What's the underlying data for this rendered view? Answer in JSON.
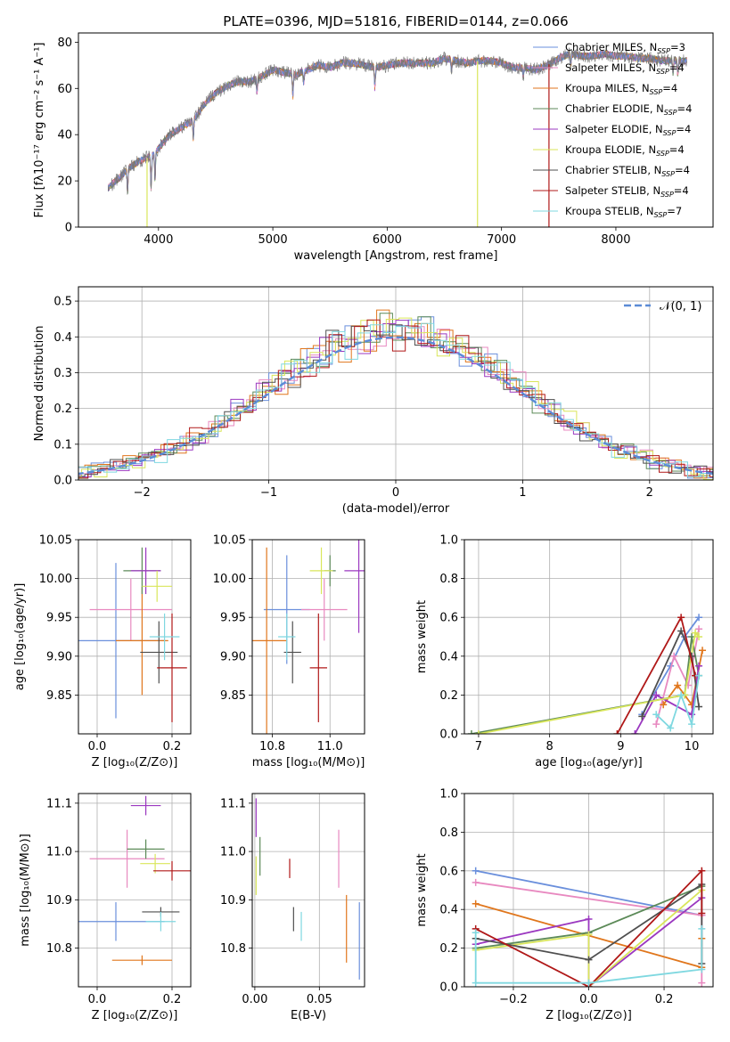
{
  "figure": {
    "title": "PLATE=0396, MJD=51816, FIBERID=0144, z=0.066"
  },
  "colors": {
    "Chabrier MILES": "#6a8fdc",
    "Salpeter MILES": "#e889c0",
    "Kroupa MILES": "#e0761c",
    "Chabrier ELODIE": "#5c8a58",
    "Salpeter ELODIE": "#9b38c0",
    "Kroupa ELODIE": "#d9e65a",
    "Chabrier STELIB": "#4f4f4f",
    "Salpeter STELIB": "#b01818",
    "Kroupa STELIB": "#7fd8e0"
  },
  "chart_data": [
    {
      "id": "spectrum",
      "type": "line",
      "xlabel": "wavelength [Angstrom, rest frame]",
      "ylabel": "Flux [fλ10⁻¹⁷ erg cm⁻² s⁻¹ A⁻¹]",
      "xlim": [
        3300,
        8850
      ],
      "ylim": [
        0,
        84
      ],
      "xticks": [
        "4000",
        "5000",
        "6000",
        "7000",
        "8000"
      ],
      "yticks": [
        "0",
        "20",
        "40",
        "60",
        "80"
      ],
      "legend_position": "top-right",
      "legend": [
        "Chabrier MILES, N_SSP=3",
        "Salpeter MILES, N_SSP=4",
        "Kroupa MILES, N_SSP=4",
        "Chabrier ELODIE, N_SSP=4",
        "Salpeter ELODIE, N_SSP=4",
        "Kroupa ELODIE, N_SSP=4",
        "Chabrier STELIB, N_SSP=4",
        "Salpeter STELIB, N_SSP=4",
        "Kroupa STELIB, N_SSP=7"
      ],
      "data_continuum": {
        "x": [
          3560,
          3650,
          3750,
          3850,
          3950,
          4000,
          4100,
          4200,
          4300,
          4400,
          4500,
          4600,
          4700,
          4800,
          4900,
          5000,
          5100,
          5200,
          5300,
          5400,
          5500,
          5600,
          5700,
          5800,
          5900,
          6000,
          6100,
          6200,
          6300,
          6400,
          6500,
          6600,
          6700,
          6800,
          6900,
          7000,
          7100,
          7200,
          7300,
          7400,
          7500,
          7600,
          7700,
          7800,
          7900,
          8000,
          8100,
          8200,
          8300,
          8400,
          8500,
          8600
        ],
        "y": [
          17,
          21,
          26,
          29,
          31,
          34,
          40,
          43,
          46,
          53,
          58,
          61,
          63,
          63,
          65,
          68,
          67,
          66,
          68,
          70,
          69,
          71,
          71,
          70,
          69,
          70,
          71,
          71,
          71,
          71,
          73,
          72,
          71,
          72,
          72,
          71,
          69,
          69,
          68,
          70,
          73,
          75,
          74,
          74,
          75,
          74,
          74,
          73,
          73,
          72,
          72,
          72
        ]
      },
      "absorption_dips": [
        {
          "x": 3730,
          "depth": 10
        },
        {
          "x": 3935,
          "depth": 14
        },
        {
          "x": 3970,
          "depth": 12
        },
        {
          "x": 4305,
          "depth": 8
        },
        {
          "x": 4862,
          "depth": 6
        },
        {
          "x": 5175,
          "depth": 10
        },
        {
          "x": 5270,
          "depth": 5
        },
        {
          "x": 5892,
          "depth": 9
        },
        {
          "x": 6563,
          "depth": 5
        },
        {
          "x": 7190,
          "depth": 4
        },
        {
          "x": 7605,
          "depth": 5
        },
        {
          "x": 8500,
          "depth": 5
        },
        {
          "x": 8542,
          "depth": 6
        },
        {
          "x": 8662,
          "depth": 8
        }
      ],
      "model_drops": [
        {
          "series": "Kroupa ELODIE",
          "x": 3900
        },
        {
          "series": "Kroupa ELODIE",
          "x": 6790
        },
        {
          "series": "Salpeter STELIB",
          "x": 7415
        }
      ]
    },
    {
      "id": "residuals",
      "type": "histogram",
      "xlabel": "(data-model)/error",
      "ylabel": "Normed distribution",
      "xlim": [
        -2.5,
        2.5
      ],
      "ylim": [
        0,
        0.54
      ],
      "xticks": [
        "−2",
        "−1",
        "0",
        "1",
        "2"
      ],
      "yticks": [
        "0.0",
        "0.1",
        "0.2",
        "0.3",
        "0.4",
        "0.5"
      ],
      "grid": true,
      "legend_position": "top-right",
      "legend": [
        "𝒩(0, 1)"
      ],
      "bin_width": 0.1
    },
    {
      "id": "age_vs_Z",
      "type": "errorbar",
      "xlabel": "Z [log₁₀(Z/Z⊙)]",
      "ylabel": "age  [log₁₀(age/yr)]",
      "xlim": [
        -0.05,
        0.25
      ],
      "ylim": [
        9.8,
        10.05
      ],
      "xticks": [
        "0.0",
        "0.2"
      ],
      "yticks": [
        "9.85",
        "9.90",
        "9.95",
        "10.00",
        "10.05"
      ],
      "grid": true,
      "points": [
        {
          "series": "Chabrier MILES",
          "x": 0.05,
          "xerr": 0.13,
          "y": 9.92,
          "yerr": 0.1
        },
        {
          "series": "Salpeter MILES",
          "x": 0.09,
          "xerr": 0.11,
          "y": 9.96,
          "yerr": 0.04
        },
        {
          "series": "Kroupa MILES",
          "x": 0.12,
          "xerr": 0.07,
          "y": 9.92,
          "yerr": 0.07
        },
        {
          "series": "Chabrier ELODIE",
          "x": 0.12,
          "xerr": 0.05,
          "y": 10.01,
          "yerr": 0.03
        },
        {
          "series": "Salpeter ELODIE",
          "x": 0.13,
          "xerr": 0.04,
          "y": 10.01,
          "yerr": 0.03
        },
        {
          "series": "Kroupa ELODIE",
          "x": 0.16,
          "xerr": 0.04,
          "y": 9.99,
          "yerr": 0.02
        },
        {
          "series": "Chabrier STELIB",
          "x": 0.165,
          "xerr": 0.05,
          "y": 9.905,
          "yerr": 0.04
        },
        {
          "series": "Salpeter STELIB",
          "x": 0.2,
          "xerr": 0.04,
          "y": 9.885,
          "yerr": 0.07
        },
        {
          "series": "Kroupa STELIB",
          "x": 0.18,
          "xerr": 0.04,
          "y": 9.925,
          "yerr": 0.03
        }
      ]
    },
    {
      "id": "age_vs_mass",
      "type": "errorbar",
      "xlabel": "mass [log₁₀(M/M⊙)]",
      "ylabel": "",
      "xlim": [
        10.73,
        11.12
      ],
      "ylim": [
        9.8,
        10.05
      ],
      "xticks": [
        "10.8",
        "11.0"
      ],
      "yticks": [
        "9.85",
        "9.90",
        "9.95",
        "10.00",
        "10.05"
      ],
      "grid": true,
      "points": [
        {
          "series": "Chabrier MILES",
          "x": 10.85,
          "xerr": 0.08,
          "y": 9.96,
          "yerr": 0.07
        },
        {
          "series": "Salpeter MILES",
          "x": 10.98,
          "xerr": 0.08,
          "y": 9.96,
          "yerr": 0.04
        },
        {
          "series": "Kroupa MILES",
          "x": 10.78,
          "xerr": 0.07,
          "y": 9.92,
          "yerr": 0.12
        },
        {
          "series": "Chabrier ELODIE",
          "x": 11.0,
          "xerr": 0.02,
          "y": 10.01,
          "yerr": 0.02
        },
        {
          "series": "Salpeter ELODIE",
          "x": 11.1,
          "xerr": 0.05,
          "y": 10.01,
          "yerr": 0.08
        },
        {
          "series": "Kroupa ELODIE",
          "x": 10.97,
          "xerr": 0.04,
          "y": 10.01,
          "yerr": 0.03
        },
        {
          "series": "Chabrier STELIB",
          "x": 10.87,
          "xerr": 0.03,
          "y": 9.905,
          "yerr": 0.04
        },
        {
          "series": "Salpeter STELIB",
          "x": 10.96,
          "xerr": 0.03,
          "y": 9.885,
          "yerr": 0.07
        },
        {
          "series": "Kroupa STELIB",
          "x": 10.85,
          "xerr": 0.03,
          "y": 9.925,
          "yerr": 0.03
        }
      ]
    },
    {
      "id": "weights_vs_age",
      "type": "line",
      "xlabel": "age  [log₁₀(age/yr)]",
      "ylabel": "mass weight",
      "xlim": [
        6.8,
        10.3
      ],
      "ylim": [
        0,
        1
      ],
      "xticks": [
        "7",
        "8",
        "9",
        "10"
      ],
      "yticks": [
        "0.0",
        "0.2",
        "0.4",
        "0.6",
        "0.8",
        "1.0"
      ],
      "grid": true,
      "series": [
        {
          "name": "Chabrier MILES",
          "x": [
            9.3,
            9.7,
            9.9,
            10.1
          ],
          "y": [
            0.1,
            0.35,
            0.5,
            0.6
          ]
        },
        {
          "name": "Salpeter MILES",
          "x": [
            9.5,
            9.75,
            9.95,
            10.1
          ],
          "y": [
            0.05,
            0.4,
            0.25,
            0.54
          ]
        },
        {
          "name": "Kroupa MILES",
          "x": [
            9.6,
            9.8,
            10.0,
            10.15
          ],
          "y": [
            0.15,
            0.25,
            0.15,
            0.43
          ]
        },
        {
          "name": "Chabrier ELODIE",
          "x": [
            6.9,
            9.9,
            10.0,
            10.1
          ],
          "y": [
            0.0,
            0.2,
            0.5,
            0.3
          ]
        },
        {
          "name": "Salpeter ELODIE",
          "x": [
            9.2,
            9.5,
            10.0,
            10.1
          ],
          "y": [
            0.0,
            0.2,
            0.1,
            0.35
          ]
        },
        {
          "name": "Kroupa ELODIE",
          "x": [
            7.0,
            9.9,
            10.05,
            10.1
          ],
          "y": [
            0.0,
            0.2,
            0.52,
            0.5
          ]
        },
        {
          "name": "Chabrier STELIB",
          "x": [
            9.3,
            9.85,
            10.0,
            10.1
          ],
          "y": [
            0.09,
            0.53,
            0.4,
            0.14
          ]
        },
        {
          "name": "Salpeter STELIB",
          "x": [
            8.95,
            9.85,
            10.05
          ],
          "y": [
            0.0,
            0.6,
            0.3
          ]
        },
        {
          "name": "Kroupa STELIB",
          "x": [
            9.5,
            9.7,
            9.85,
            10.0,
            10.1
          ],
          "y": [
            0.1,
            0.03,
            0.2,
            0.05,
            0.3
          ]
        }
      ]
    },
    {
      "id": "mass_vs_Z",
      "type": "errorbar",
      "xlabel": "Z [log₁₀(Z/Z⊙)]",
      "ylabel": "mass [log₁₀(M/M⊙)]",
      "xlim": [
        -0.05,
        0.25
      ],
      "ylim": [
        10.72,
        11.12
      ],
      "xticks": [
        "0.0",
        "0.2"
      ],
      "yticks": [
        "10.8",
        "10.9",
        "11.0",
        "11.1"
      ],
      "grid": true,
      "points": [
        {
          "series": "Chabrier MILES",
          "x": 0.05,
          "xerr": 0.13,
          "y": 10.855,
          "yerr": 0.04
        },
        {
          "series": "Salpeter MILES",
          "x": 0.08,
          "xerr": 0.1,
          "y": 10.985,
          "yerr": 0.06
        },
        {
          "series": "Kroupa MILES",
          "x": 0.12,
          "xerr": 0.08,
          "y": 10.775,
          "yerr": 0.01
        },
        {
          "series": "Chabrier ELODIE",
          "x": 0.13,
          "xerr": 0.05,
          "y": 11.005,
          "yerr": 0.02
        },
        {
          "series": "Salpeter ELODIE",
          "x": 0.13,
          "xerr": 0.04,
          "y": 11.095,
          "yerr": 0.02
        },
        {
          "series": "Kroupa ELODIE",
          "x": 0.155,
          "xerr": 0.04,
          "y": 10.975,
          "yerr": 0.02
        },
        {
          "series": "Chabrier STELIB",
          "x": 0.17,
          "xerr": 0.05,
          "y": 10.875,
          "yerr": 0.01
        },
        {
          "series": "Salpeter STELIB",
          "x": 0.2,
          "xerr": 0.05,
          "y": 10.96,
          "yerr": 0.02
        },
        {
          "series": "Kroupa STELIB",
          "x": 0.17,
          "xerr": 0.04,
          "y": 10.855,
          "yerr": 0.02
        }
      ]
    },
    {
      "id": "mass_vs_EBV",
      "type": "errorbar",
      "xlabel": "E(B-V)",
      "ylabel": "",
      "xlim": [
        -0.002,
        0.085
      ],
      "ylim": [
        10.72,
        11.12
      ],
      "xticks": [
        "0.00",
        "0.05"
      ],
      "yticks": [
        "10.8",
        "10.9",
        "11.0",
        "11.1"
      ],
      "grid": true,
      "points": [
        {
          "series": "Chabrier MILES",
          "x": 0.081,
          "y": 10.815,
          "yerr": 0.08
        },
        {
          "series": "Salpeter MILES",
          "x": 0.065,
          "y": 10.985,
          "yerr": 0.06
        },
        {
          "series": "Kroupa MILES",
          "x": 0.071,
          "y": 10.84,
          "yerr": 0.07
        },
        {
          "series": "Chabrier ELODIE",
          "x": 0.004,
          "y": 10.99,
          "yerr": 0.04
        },
        {
          "series": "Salpeter ELODIE",
          "x": 0.001,
          "y": 11.07,
          "yerr": 0.04
        },
        {
          "series": "Kroupa ELODIE",
          "x": 0.001,
          "y": 10.95,
          "yerr": 0.04
        },
        {
          "series": "Chabrier STELIB",
          "x": 0.03,
          "y": 10.86,
          "yerr": 0.025
        },
        {
          "series": "Salpeter STELIB",
          "x": 0.027,
          "y": 10.965,
          "yerr": 0.02
        },
        {
          "series": "Kroupa STELIB",
          "x": 0.036,
          "y": 10.845,
          "yerr": 0.03
        }
      ]
    },
    {
      "id": "weights_vs_Z",
      "type": "line",
      "xlabel": "Z [log₁₀(Z/Z⊙)]",
      "ylabel": "mass weight",
      "xlim": [
        -0.33,
        0.33
      ],
      "ylim": [
        0,
        1
      ],
      "xticks": [
        "−0.2",
        "0.0",
        "0.2"
      ],
      "yticks": [
        "0.0",
        "0.2",
        "0.4",
        "0.6",
        "0.8",
        "1.0"
      ],
      "grid": true,
      "series": [
        {
          "name": "Chabrier MILES",
          "x": [
            -0.3,
            0.3
          ],
          "y": [
            0.6,
            0.37
          ]
        },
        {
          "name": "Salpeter MILES",
          "x": [
            -0.3,
            0.3,
            0.3
          ],
          "y": [
            0.54,
            0.37,
            0.02
          ]
        },
        {
          "name": "Kroupa MILES",
          "x": [
            -0.3,
            0.3,
            0.3
          ],
          "y": [
            0.43,
            0.1,
            0.25
          ]
        },
        {
          "name": "Chabrier ELODIE",
          "x": [
            -0.3,
            0.0,
            0.3
          ],
          "y": [
            0.2,
            0.28,
            0.52
          ]
        },
        {
          "name": "Salpeter ELODIE",
          "x": [
            -0.3,
            0.0,
            0.0,
            0.3
          ],
          "y": [
            0.22,
            0.35,
            0.0,
            0.46
          ]
        },
        {
          "name": "Kroupa ELODIE",
          "x": [
            -0.3,
            0.0,
            0.0,
            0.3
          ],
          "y": [
            0.19,
            0.27,
            0.0,
            0.5
          ]
        },
        {
          "name": "Chabrier STELIB",
          "x": [
            -0.3,
            0.0,
            0.3,
            0.3
          ],
          "y": [
            0.25,
            0.14,
            0.53,
            0.12
          ]
        },
        {
          "name": "Salpeter STELIB",
          "x": [
            -0.3,
            0.0,
            0.3,
            0.3
          ],
          "y": [
            0.3,
            0.0,
            0.6,
            0.38
          ]
        },
        {
          "name": "Kroupa STELIB",
          "x": [
            -0.3,
            -0.3,
            0.0,
            0.3,
            0.3
          ],
          "y": [
            0.28,
            0.02,
            0.02,
            0.09,
            0.3
          ]
        }
      ]
    }
  ]
}
